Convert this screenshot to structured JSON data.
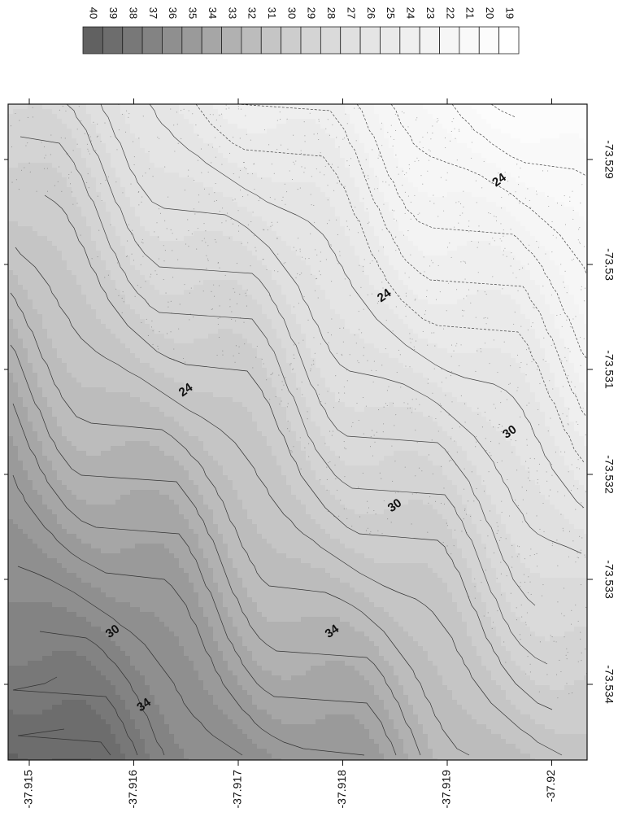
{
  "chart_data": {
    "type": "heatmap",
    "orientation": "rotated 90 degrees clockwise",
    "title": "",
    "xlabel": "",
    "ylabel": "",
    "x_axis": {
      "position": "bottom",
      "ticks": [
        -37.915,
        -37.916,
        -37.917,
        -37.918,
        -37.919,
        -37.92
      ],
      "tick_labels": [
        "-37.915",
        "-37.916",
        "-37.917",
        "-37.918",
        "-37.919",
        "-37.92"
      ],
      "range": [
        -37.915,
        -37.9205
      ]
    },
    "y_axis": {
      "position": "right",
      "ticks": [
        -73.529,
        -73.53,
        -73.531,
        -73.532,
        -73.533,
        -73.534
      ],
      "tick_labels": [
        "-73.529",
        "-73.53",
        "-73.531",
        "-73.532",
        "-73.533",
        "-73.534"
      ],
      "range": [
        -73.5285,
        -73.5347
      ]
    },
    "color_scale": {
      "levels": [
        40,
        39,
        38,
        37,
        36,
        35,
        34,
        33,
        32,
        31,
        30,
        29,
        28,
        27,
        26,
        25,
        24,
        23,
        22,
        21,
        20,
        19
      ],
      "labels": [
        "40",
        "39",
        "38",
        "37",
        "36",
        "35",
        "34",
        "33",
        "32",
        "31",
        "30",
        "29",
        "28",
        "27",
        "26",
        "25",
        "24",
        "23",
        "22",
        "21",
        "20",
        "19"
      ],
      "colors": [
        "#616161",
        "#6d6d6d",
        "#787878",
        "#838383",
        "#8f8f8f",
        "#9a9a9a",
        "#a6a6a6",
        "#b1b1b1",
        "#bcbcbc",
        "#c5c5c5",
        "#cdcdcd",
        "#d4d4d4",
        "#dadada",
        "#e0e0e0",
        "#e5e5e5",
        "#eaeaea",
        "#efefef",
        "#f3f3f3",
        "#f6f6f6",
        "#f9f9f9",
        "#fcfcfc",
        "#ffffff"
      ]
    },
    "contour_labels": [
      {
        "text": "24",
        "x": -37.9165,
        "y": -73.5312
      },
      {
        "text": "24",
        "x": -37.9184,
        "y": -73.5303
      },
      {
        "text": "24",
        "x": -37.9195,
        "y": -73.5292
      },
      {
        "text": "30",
        "x": -37.9158,
        "y": -73.5335
      },
      {
        "text": "30",
        "x": -37.9185,
        "y": -73.5323
      },
      {
        "text": "30",
        "x": -37.9196,
        "y": -73.5316
      },
      {
        "text": "34",
        "x": -37.9179,
        "y": -73.5335
      },
      {
        "text": "34",
        "x": -37.9161,
        "y": -73.5342
      }
    ],
    "field": {
      "gradient_vector_per_axis_unit": [
        0.62,
        0.78
      ],
      "value_range_in_view": [
        19,
        40
      ]
    }
  }
}
